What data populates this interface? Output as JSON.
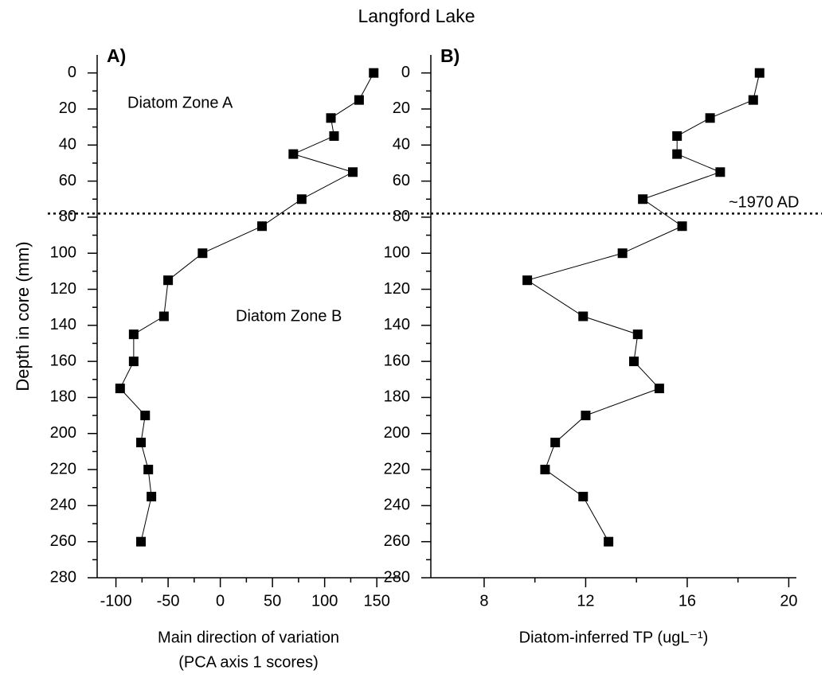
{
  "title": "Langford Lake",
  "chart_data": [
    {
      "type": "line",
      "panel_label": "A)",
      "color": "#000000",
      "xlabel": [
        "Main direction of variation",
        "(PCA axis 1 scores)"
      ],
      "ylabel": "Depth in core (mm)",
      "xlim": [
        -118,
        172
      ],
      "xticks": [
        -100,
        -50,
        0,
        50,
        100,
        150
      ],
      "ylim": [
        -10,
        280
      ],
      "y_inverted": true,
      "yticks": [
        0,
        20,
        40,
        60,
        80,
        100,
        120,
        140,
        160,
        180,
        200,
        220,
        240,
        260,
        280
      ],
      "x": [
        147,
        133,
        106,
        109,
        70,
        127,
        78,
        40,
        -17,
        -50,
        -54,
        -83,
        -83,
        -96,
        -72,
        -76,
        -69,
        -66,
        -76
      ],
      "y": [
        0,
        15,
        25,
        35,
        45,
        55,
        70,
        85,
        100,
        115,
        135,
        145,
        160,
        175,
        190,
        205,
        220,
        235,
        260
      ],
      "hline": 78,
      "annotations": [
        "Diatom Zone A",
        "Diatom Zone B"
      ]
    },
    {
      "type": "line",
      "panel_label": "B)",
      "color": "#000000",
      "xlabel": [
        "Diatom-inferred TP (ugL⁻¹)"
      ],
      "xlim": [
        5.9,
        20.3
      ],
      "xticks": [
        8,
        12,
        16,
        20
      ],
      "ylim": [
        -10,
        280
      ],
      "y_inverted": true,
      "yticks": [
        0,
        20,
        40,
        60,
        80,
        100,
        120,
        140,
        160,
        180,
        200,
        220,
        240,
        260,
        280
      ],
      "x": [
        18.85,
        18.6,
        16.9,
        15.6,
        15.6,
        17.3,
        14.25,
        15.8,
        13.45,
        9.7,
        11.9,
        14.05,
        13.9,
        14.9,
        12.0,
        10.8,
        10.4,
        11.9,
        12.9
      ],
      "y": [
        0,
        15,
        25,
        35,
        45,
        55,
        70,
        85,
        100,
        115,
        135,
        145,
        160,
        175,
        190,
        205,
        220,
        235,
        260
      ],
      "hline": 78,
      "annotations": [
        "~1970 AD"
      ]
    }
  ]
}
